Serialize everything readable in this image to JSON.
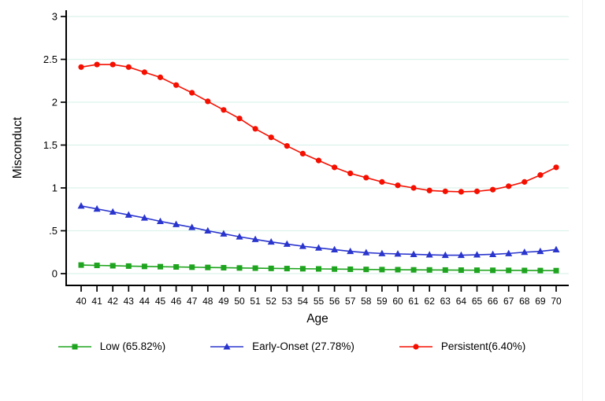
{
  "chart_data": {
    "type": "line",
    "title": "",
    "xlabel": "Age",
    "ylabel": "Misconduct",
    "grid": true,
    "grid_color": "#dcf2ec",
    "axis_color": "#000000",
    "legend_position": "bottom",
    "xlim": [
      39,
      71
    ],
    "ylim": [
      0,
      3
    ],
    "x": [
      40,
      41,
      42,
      43,
      44,
      45,
      46,
      47,
      48,
      49,
      50,
      51,
      52,
      53,
      54,
      55,
      56,
      57,
      58,
      59,
      60,
      61,
      62,
      63,
      64,
      65,
      66,
      67,
      68,
      69,
      70
    ],
    "yticks": [
      0,
      0.5,
      1,
      1.5,
      2,
      2.5,
      3
    ],
    "ytick_labels": [
      "0",
      ".5",
      "1",
      "1.5",
      "2",
      "2.5",
      "3"
    ],
    "series": [
      {
        "name": "Low (65.82%)",
        "color": "#1fa41f",
        "marker": "square",
        "values": [
          0.1,
          0.096,
          0.092,
          0.088,
          0.084,
          0.081,
          0.078,
          0.075,
          0.072,
          0.069,
          0.066,
          0.064,
          0.061,
          0.059,
          0.057,
          0.055,
          0.053,
          0.051,
          0.049,
          0.047,
          0.046,
          0.044,
          0.043,
          0.042,
          0.041,
          0.04,
          0.039,
          0.038,
          0.037,
          0.036,
          0.035
        ]
      },
      {
        "name": "Early-Onset (27.78%)",
        "color": "#2a35cd",
        "marker": "triangle",
        "values": [
          0.79,
          0.755,
          0.72,
          0.685,
          0.65,
          0.61,
          0.575,
          0.54,
          0.5,
          0.465,
          0.43,
          0.4,
          0.37,
          0.345,
          0.32,
          0.3,
          0.28,
          0.26,
          0.245,
          0.235,
          0.23,
          0.225,
          0.22,
          0.215,
          0.215,
          0.22,
          0.225,
          0.235,
          0.25,
          0.26,
          0.28
        ]
      },
      {
        "name": "Persistent(6.40%)",
        "color": "#f50f00",
        "marker": "circle",
        "values": [
          2.41,
          2.44,
          2.44,
          2.41,
          2.35,
          2.29,
          2.2,
          2.11,
          2.01,
          1.91,
          1.81,
          1.69,
          1.59,
          1.49,
          1.4,
          1.32,
          1.24,
          1.17,
          1.12,
          1.07,
          1.03,
          1.0,
          0.97,
          0.96,
          0.955,
          0.96,
          0.98,
          1.02,
          1.07,
          1.15,
          1.24
        ]
      }
    ]
  }
}
